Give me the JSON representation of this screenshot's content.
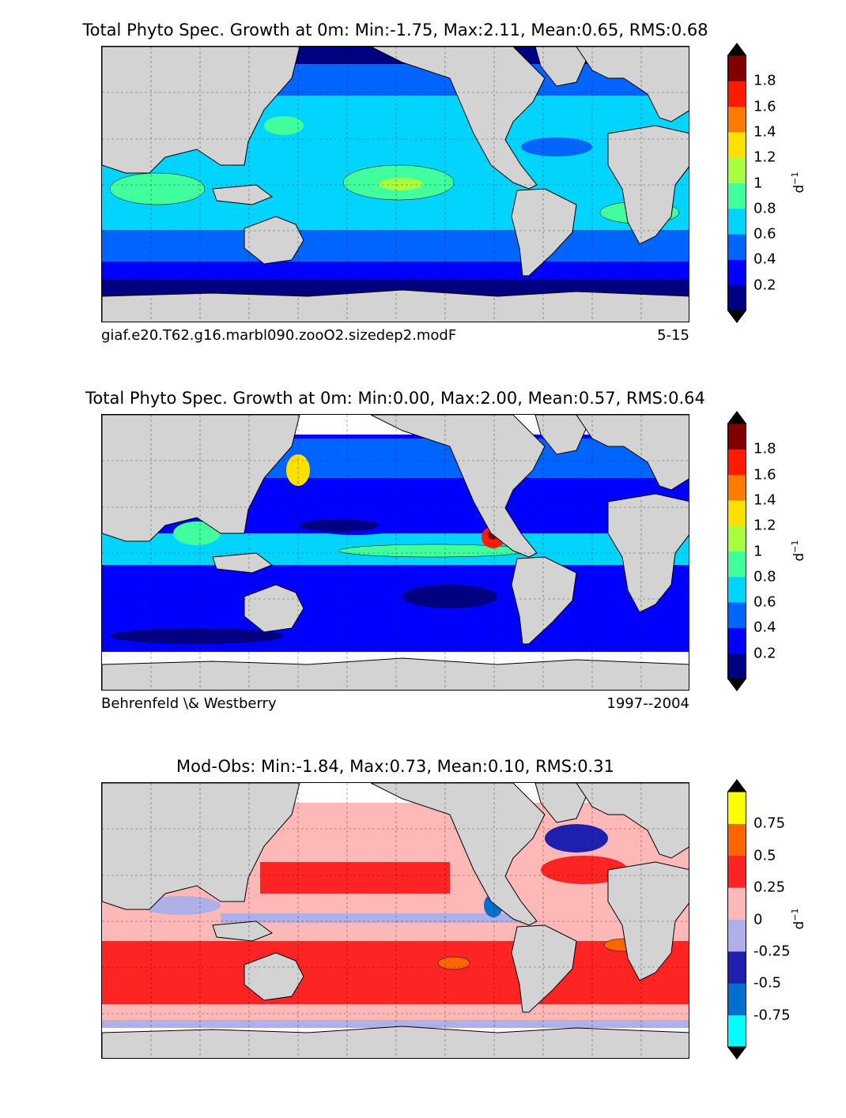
{
  "panels": [
    {
      "id": "model",
      "title": "Total Phyto Spec. Growth at 0m: Min:-1.75, Max:2.11, Mean:0.65, RMS:0.68",
      "left_note": "giaf.e20.T62.g16.marbl090.zooO2.sizedep2.modF",
      "right_note": "5-15",
      "colorbar": {
        "levels": [
          "",
          "0.2",
          "0.4",
          "0.6",
          "0.8",
          "1",
          "1.2",
          "1.4",
          "1.6",
          "1.8"
        ],
        "colors": [
          "#000080",
          "#0000ff",
          "#0064ff",
          "#00d4ff",
          "#40ff9c",
          "#a8ff40",
          "#ffe000",
          "#ff7a00",
          "#ff1a00",
          "#800000"
        ],
        "under_color": "#000000",
        "over_color": "#000000",
        "unit_base": "d",
        "unit_exp": "−1"
      }
    },
    {
      "id": "obs",
      "title": "Total Phyto Spec. Growth at 0m: Min:0.00, Max:2.00, Mean:0.57, RMS:0.64",
      "left_note": "Behrenfeld \\& Westberry",
      "right_note": "1997--2004",
      "colorbar": {
        "levels": [
          "",
          "0.2",
          "0.4",
          "0.6",
          "0.8",
          "1",
          "1.2",
          "1.4",
          "1.6",
          "1.8"
        ],
        "colors": [
          "#000080",
          "#0000ff",
          "#0064ff",
          "#00d4ff",
          "#40ff9c",
          "#a8ff40",
          "#ffe000",
          "#ff7a00",
          "#ff1a00",
          "#800000"
        ],
        "under_color": "#000000",
        "over_color": "#000000",
        "unit_base": "d",
        "unit_exp": "−1"
      }
    },
    {
      "id": "diff",
      "title": "Mod-Obs: Min:-1.84, Max:0.73, Mean:0.10, RMS:0.31",
      "left_note": "",
      "right_note": "",
      "colorbar": {
        "levels": [
          "",
          "-0.75",
          "-0.5",
          "-0.25",
          "0",
          "0.25",
          "0.5",
          "0.75"
        ],
        "colors": [
          "#00ffff",
          "#0070d0",
          "#2020b0",
          "#b0b0e8",
          "#ffb8b8",
          "#ff2424",
          "#ff6600",
          "#ffff00"
        ],
        "under_color": "#000000",
        "over_color": "#000000",
        "unit_base": "d",
        "unit_exp": "−1"
      }
    }
  ],
  "map_colors": {
    "land": "#d3d3d3",
    "missing": "#ffffff",
    "coast": "#000000"
  }
}
